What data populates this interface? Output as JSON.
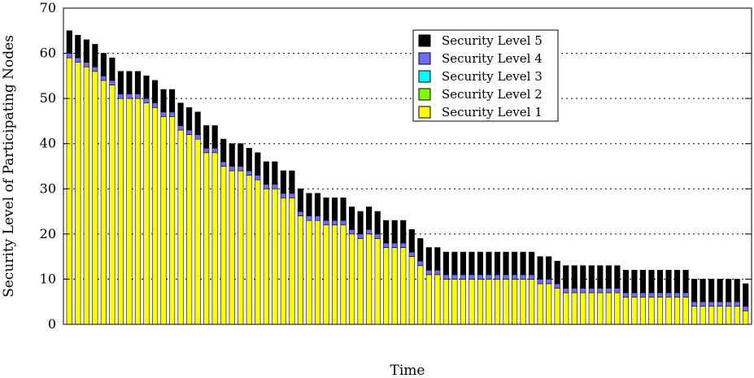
{
  "chart_data": {
    "type": "bar",
    "stacked": true,
    "xlabel": "Time",
    "ylabel": "Security Level of Participating Nodes",
    "ylim": [
      0,
      70
    ],
    "yticks": [
      0,
      10,
      20,
      30,
      40,
      50,
      60,
      70
    ],
    "grid": "horizontal-dotted",
    "legend_position": "top-right",
    "series": [
      {
        "name": "Security Level 1",
        "color": "#ffff00",
        "values": [
          59,
          58,
          57,
          56,
          54,
          53,
          50,
          50,
          50,
          49,
          48,
          46,
          46,
          43,
          42,
          41,
          38,
          38,
          35,
          34,
          34,
          33,
          32,
          30,
          30,
          28,
          28,
          24,
          23,
          23,
          22,
          22,
          22,
          20,
          19,
          20,
          19,
          17,
          17,
          17,
          15,
          13,
          11,
          11,
          10,
          10,
          10,
          10,
          10,
          10,
          10,
          10,
          10,
          10,
          10,
          9,
          9,
          8,
          7,
          7,
          7,
          7,
          7,
          7,
          7,
          6,
          6,
          6,
          6,
          6,
          6,
          6,
          6,
          4,
          4,
          4,
          4,
          4,
          4,
          3
        ]
      },
      {
        "name": "Security Level 2",
        "color": "#7fff00",
        "values": [
          0,
          0,
          0,
          0,
          0,
          0,
          0,
          0,
          0,
          0,
          0,
          0,
          0,
          0,
          0,
          0,
          0,
          0,
          0,
          0,
          0,
          0,
          0,
          0,
          0,
          0,
          0,
          0,
          0,
          0,
          0,
          0,
          0,
          0,
          0,
          0,
          0,
          0,
          0,
          0,
          0,
          0,
          0,
          0,
          0,
          0,
          0,
          0,
          0,
          0,
          0,
          0,
          0,
          0,
          0,
          0,
          0,
          0,
          0,
          0,
          0,
          0,
          0,
          0,
          0,
          0,
          0,
          0,
          0,
          0,
          0,
          0,
          0,
          0,
          0,
          0,
          0,
          0,
          0,
          0
        ]
      },
      {
        "name": "Security Level 3",
        "color": "#00ffff",
        "values": [
          0,
          0,
          0,
          0,
          0,
          0,
          0,
          0,
          0,
          0,
          0,
          0,
          0,
          0,
          0,
          0,
          0,
          0,
          0,
          0,
          0,
          0,
          0,
          0,
          0,
          0,
          0,
          0,
          0,
          0,
          0,
          0,
          0,
          0,
          0,
          0,
          0,
          0,
          0,
          0,
          0,
          0,
          0,
          0,
          0,
          0,
          0,
          0,
          0,
          0,
          0,
          0,
          0,
          0,
          0,
          0,
          0,
          0,
          0,
          0,
          0,
          0,
          0,
          0,
          0,
          0,
          0,
          0,
          0,
          0,
          0,
          0,
          0,
          0,
          0,
          0,
          0,
          0,
          0,
          0
        ]
      },
      {
        "name": "Security Level 4",
        "color": "#6b6bff",
        "values": [
          1,
          1,
          1,
          1,
          1,
          1,
          1,
          1,
          1,
          1,
          1,
          1,
          1,
          1,
          1,
          1,
          1,
          1,
          1,
          1,
          1,
          1,
          1,
          1,
          1,
          1,
          1,
          1,
          1,
          1,
          1,
          1,
          1,
          1,
          1,
          1,
          1,
          1,
          1,
          1,
          1,
          1,
          1,
          1,
          1,
          1,
          1,
          1,
          1,
          1,
          1,
          1,
          1,
          1,
          1,
          1,
          1,
          1,
          1,
          1,
          1,
          1,
          1,
          1,
          1,
          1,
          1,
          1,
          1,
          1,
          1,
          1,
          1,
          1,
          1,
          1,
          1,
          1,
          1,
          1
        ]
      },
      {
        "name": "Security Level 5",
        "color": "#000000",
        "values": [
          5,
          5,
          5,
          5,
          5,
          5,
          5,
          5,
          5,
          5,
          5,
          5,
          5,
          5,
          5,
          5,
          5,
          5,
          5,
          5,
          5,
          5,
          5,
          5,
          5,
          5,
          5,
          5,
          5,
          5,
          5,
          5,
          5,
          5,
          5,
          5,
          5,
          5,
          5,
          5,
          5,
          5,
          5,
          5,
          5,
          5,
          5,
          5,
          5,
          5,
          5,
          5,
          5,
          5,
          5,
          5,
          5,
          5,
          5,
          5,
          5,
          5,
          5,
          5,
          5,
          5,
          5,
          5,
          5,
          5,
          5,
          5,
          5,
          5,
          5,
          5,
          5,
          5,
          5,
          5
        ]
      }
    ]
  }
}
